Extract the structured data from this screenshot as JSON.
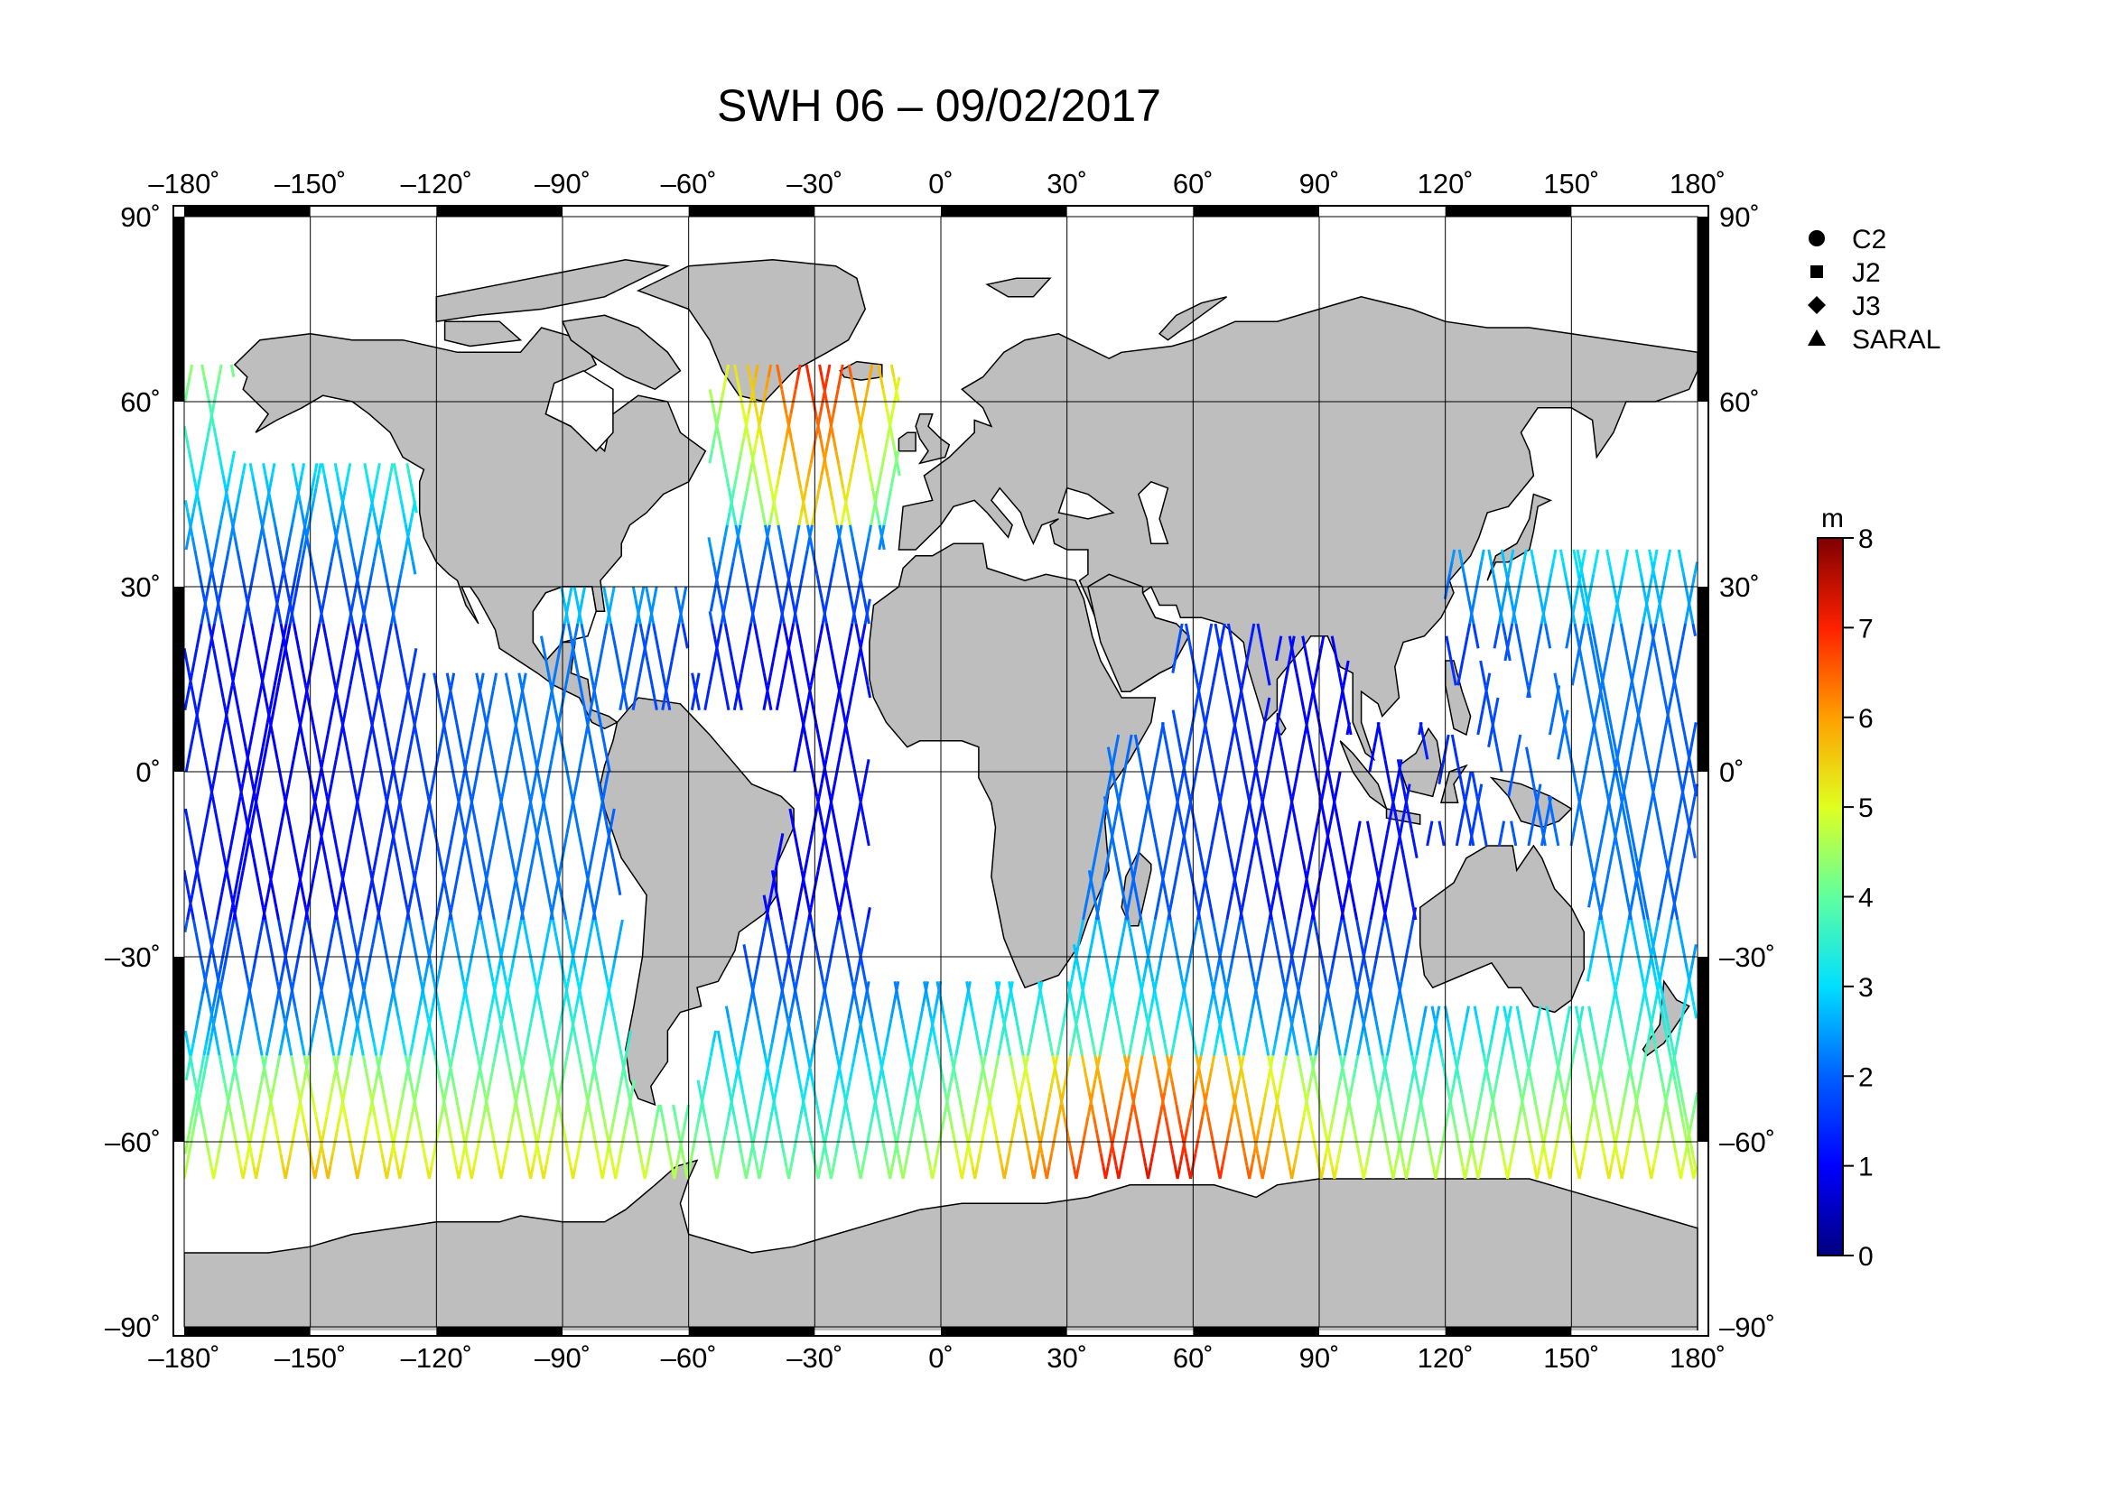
{
  "title": "SWH 06 – 09/02/2017",
  "lon_ticks": [
    "–180˚",
    "–150˚",
    "–120˚",
    "–90˚",
    "–60˚",
    "–30˚",
    "0˚",
    "30˚",
    "60˚",
    "90˚",
    "120˚",
    "150˚",
    "180˚"
  ],
  "lat_ticks": [
    "90˚",
    "60˚",
    "30˚",
    "0˚",
    "–30˚",
    "–60˚",
    "–90˚"
  ],
  "lat_values": [
    90,
    60,
    30,
    0,
    -30,
    -60,
    -90
  ],
  "lon_values": [
    -180,
    -150,
    -120,
    -90,
    -60,
    -30,
    0,
    30,
    60,
    90,
    120,
    150,
    180
  ],
  "legend": [
    {
      "label": "C2",
      "marker": "circle"
    },
    {
      "label": "J2",
      "marker": "square"
    },
    {
      "label": "J3",
      "marker": "diamond"
    },
    {
      "label": "SARAL",
      "marker": "triangle"
    }
  ],
  "colorbar": {
    "unit": "m",
    "min": 0,
    "max": 8,
    "tick_labels": [
      "8",
      "7",
      "6",
      "5",
      "4",
      "3",
      "2",
      "1",
      "0"
    ],
    "colors": [
      "#00007f",
      "#0000ff",
      "#007fff",
      "#00ffff",
      "#7fff7f",
      "#ffff00",
      "#ff7f00",
      "#ff0000",
      "#7f0000"
    ]
  },
  "map": {
    "land_color": "#bebebe",
    "ocean_color": "#ffffff",
    "projection": "equirectangular",
    "lon_range": [
      -180,
      180
    ],
    "lat_range": [
      -90,
      90
    ]
  }
}
